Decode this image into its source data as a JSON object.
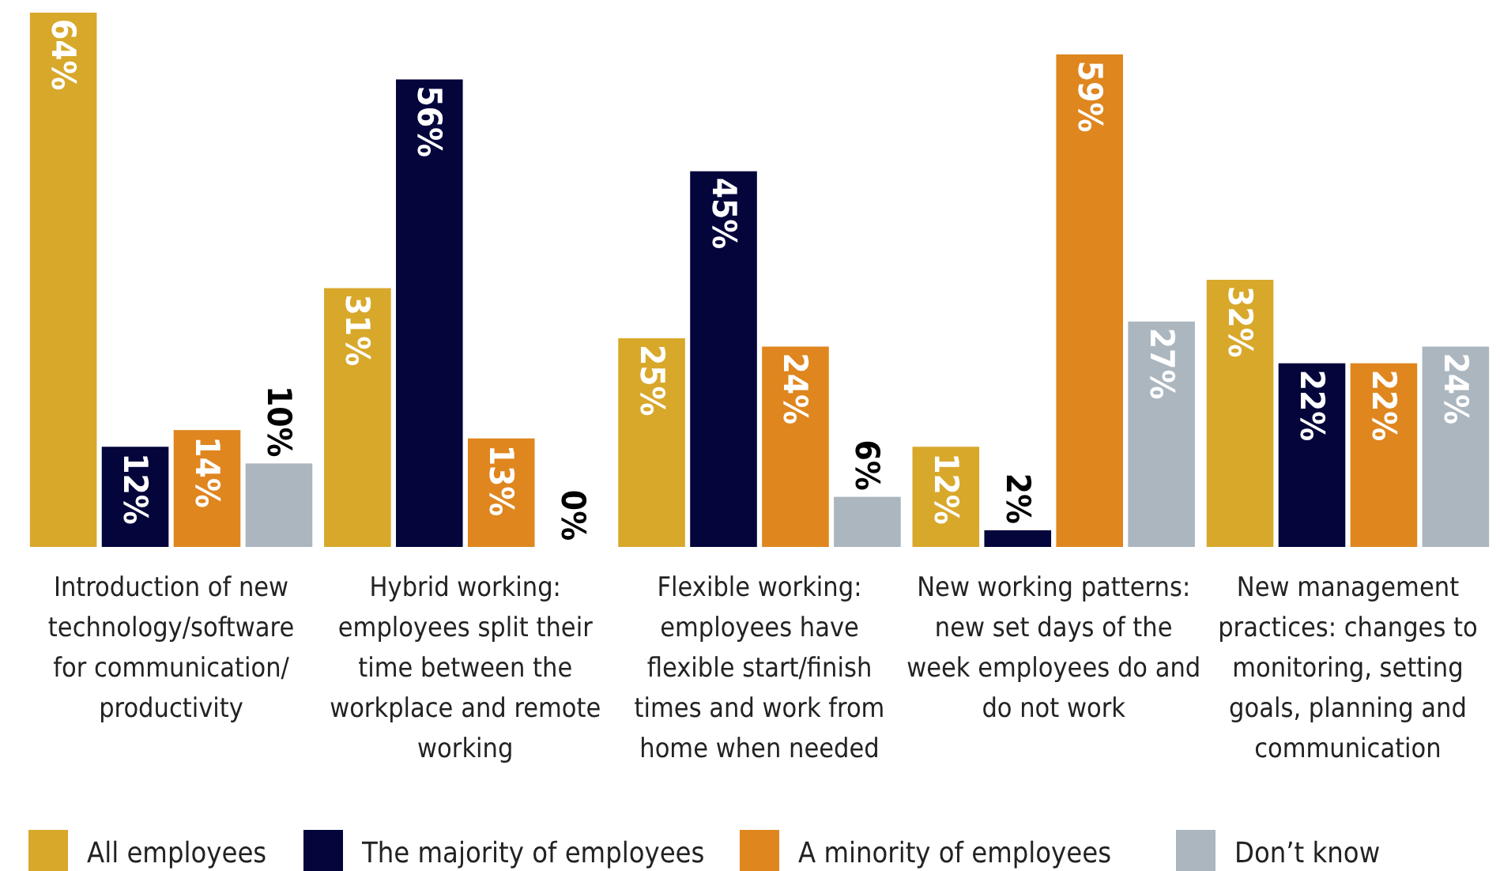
{
  "chart_data": {
    "type": "bar",
    "categories": [
      "Introduction of new technology/software for communication/ productivity",
      "Hybrid working: employees split their time between the workplace and remote working",
      "Flexible working: employees have flexible start/finish times and work from home when needed",
      "New working patterns: new set days of the week employees do and do not work",
      "New management practices: changes to monitoring, setting goals, planning and communication"
    ],
    "series": [
      {
        "name": "All employees",
        "color": "#d8a82b",
        "values": [
          64,
          31,
          25,
          12,
          32
        ],
        "value_labels": [
          "64%",
          "31%",
          "25%",
          "12%",
          "32%"
        ]
      },
      {
        "name": "The majority of employees",
        "color": "#03053b",
        "values": [
          12,
          56,
          45,
          2,
          22
        ],
        "value_labels": [
          "12%",
          "56%",
          "45%",
          "2%",
          "22%"
        ]
      },
      {
        "name": "A minority of employees",
        "color": "#df861f",
        "values": [
          14,
          13,
          24,
          59,
          22
        ],
        "value_labels": [
          "14%",
          "13%",
          "24%",
          "59%",
          "22%"
        ]
      },
      {
        "name": "Don’t know",
        "color": "#abb6bf",
        "values": [
          10,
          0,
          6,
          27,
          24
        ],
        "value_labels": [
          "10%",
          "0%",
          "6%",
          "27%",
          "24%"
        ]
      }
    ],
    "ylim": [
      0,
      64
    ],
    "legend": "bottom"
  }
}
